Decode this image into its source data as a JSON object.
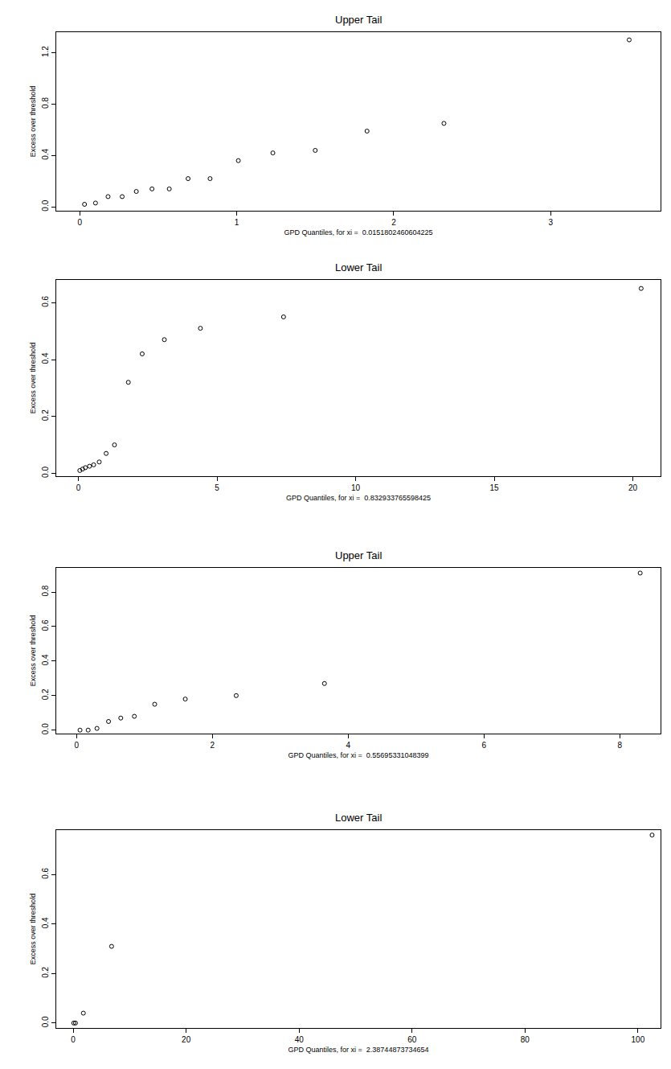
{
  "chart_data": [
    {
      "type": "scatter",
      "title": "Upper Tail",
      "x_label": "GPD Quantiles, for xi =  0.0151802460604225",
      "y_label": "Excess over threshold",
      "x": [
        0.03,
        0.1,
        0.18,
        0.27,
        0.36,
        0.46,
        0.57,
        0.69,
        0.83,
        1.01,
        1.23,
        1.5,
        1.83,
        2.32,
        3.5
      ],
      "values": [
        0.02,
        0.03,
        0.08,
        0.08,
        0.12,
        0.14,
        0.14,
        0.22,
        0.22,
        0.36,
        0.42,
        0.44,
        0.59,
        0.65,
        1.3
      ],
      "xlim": [
        -0.15,
        3.7
      ],
      "ylim": [
        -0.03,
        1.36
      ],
      "xticks": [
        0,
        1,
        2,
        3
      ],
      "yticks": [
        {
          "value": 0,
          "label": "0.0"
        },
        0.4,
        0.8,
        1.2
      ],
      "marker": "circle-open",
      "color": "#000000"
    },
    {
      "type": "scatter",
      "title": "Lower Tail",
      "x_label": "GPD Quantiles, for xi =  0.832933765598425",
      "y_label": "Excess over threshold",
      "x": [
        0.05,
        0.15,
        0.25,
        0.4,
        0.55,
        0.75,
        1.0,
        1.3,
        1.8,
        2.3,
        3.1,
        4.4,
        7.4,
        20.3
      ],
      "values": [
        0.01,
        0.015,
        0.02,
        0.025,
        0.03,
        0.04,
        0.07,
        0.1,
        0.32,
        0.42,
        0.47,
        0.51,
        0.55,
        0.65
      ],
      "xlim": [
        -0.8,
        21
      ],
      "ylim": [
        -0.01,
        0.68
      ],
      "xticks": [
        0,
        5,
        10,
        15,
        20
      ],
      "yticks": [
        {
          "value": 0,
          "label": "0.0"
        },
        0.2,
        0.4,
        0.6
      ],
      "marker": "circle-open",
      "color": "#000000"
    },
    {
      "type": "scatter",
      "title": "Upper Tail",
      "x_label": "GPD Quantiles, for xi =  0.55695331048399",
      "y_label": "Excess over threshold",
      "x": [
        0.05,
        0.17,
        0.3,
        0.47,
        0.65,
        0.85,
        1.15,
        1.6,
        2.35,
        3.65,
        8.3
      ],
      "values": [
        0.0,
        0.0,
        0.01,
        0.05,
        0.07,
        0.08,
        0.15,
        0.18,
        0.2,
        0.27,
        0.91
      ],
      "xlim": [
        -0.3,
        8.6
      ],
      "ylim": [
        -0.02,
        0.94
      ],
      "xticks": [
        0,
        2,
        4,
        6,
        8
      ],
      "yticks": [
        {
          "value": 0,
          "label": "0.0"
        },
        0.2,
        0.4,
        0.6,
        0.8
      ],
      "marker": "circle-open",
      "color": "#000000"
    },
    {
      "type": "scatter",
      "title": "Lower Tail",
      "x_label": "GPD Quantiles, for xi =  2.38744873734654",
      "y_label": "Excess over threshold",
      "x": [
        0.1,
        0.4,
        1.8,
        6.8,
        102.5
      ],
      "values": [
        0.0,
        0.0,
        0.04,
        0.31,
        0.76
      ],
      "xlim": [
        -3,
        104
      ],
      "ylim": [
        -0.02,
        0.78
      ],
      "xticks": [
        0,
        20,
        40,
        60,
        80,
        100
      ],
      "yticks": [
        {
          "value": 0,
          "label": "0.0"
        },
        0.2,
        0.4,
        0.6
      ],
      "marker": "circle-open",
      "color": "#000000"
    }
  ]
}
